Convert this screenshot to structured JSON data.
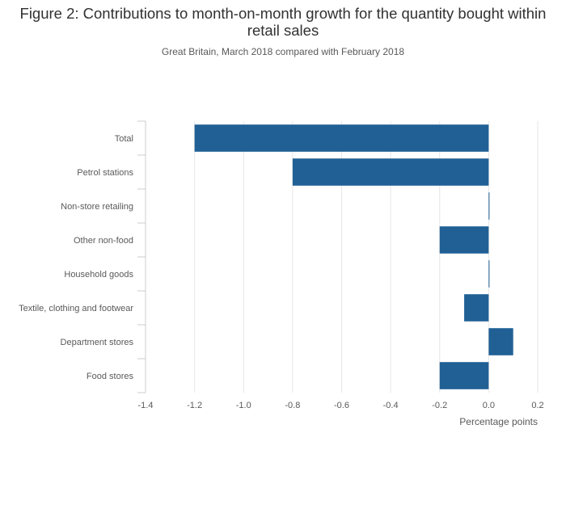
{
  "chart_data": {
    "type": "bar",
    "orientation": "horizontal",
    "title": "Figure 2: Contributions to month-on-month growth for the quantity bought within retail sales",
    "subtitle": "Great Britain, March 2018 compared with February 2018",
    "categories": [
      "Total",
      "Petrol stations",
      "Non-store retailing",
      "Other non-food",
      "Household goods",
      "Textile, clothing and footwear",
      "Department stores",
      "Food stores"
    ],
    "values": [
      -1.2,
      -0.8,
      0.0,
      -0.2,
      0.0,
      -0.1,
      0.1,
      -0.2
    ],
    "xlabel": "Percentage points",
    "ylabel": "",
    "xlim": [
      -1.4,
      0.2
    ],
    "xticks": [
      -1.4,
      -1.2,
      -1.0,
      -0.8,
      -0.6,
      -0.4,
      -0.2,
      0.0,
      0.2
    ],
    "xtick_labels": [
      "-1.4",
      "-1.2",
      "-1.0",
      "-0.8",
      "-0.6",
      "-0.4",
      "-0.2",
      "0.0",
      "0.2"
    ],
    "grid": true,
    "colors": {
      "bar": "#206095",
      "grid": "#e6e6e6",
      "axis": "#cccccc",
      "text": "#595959",
      "title": "#323132"
    }
  }
}
